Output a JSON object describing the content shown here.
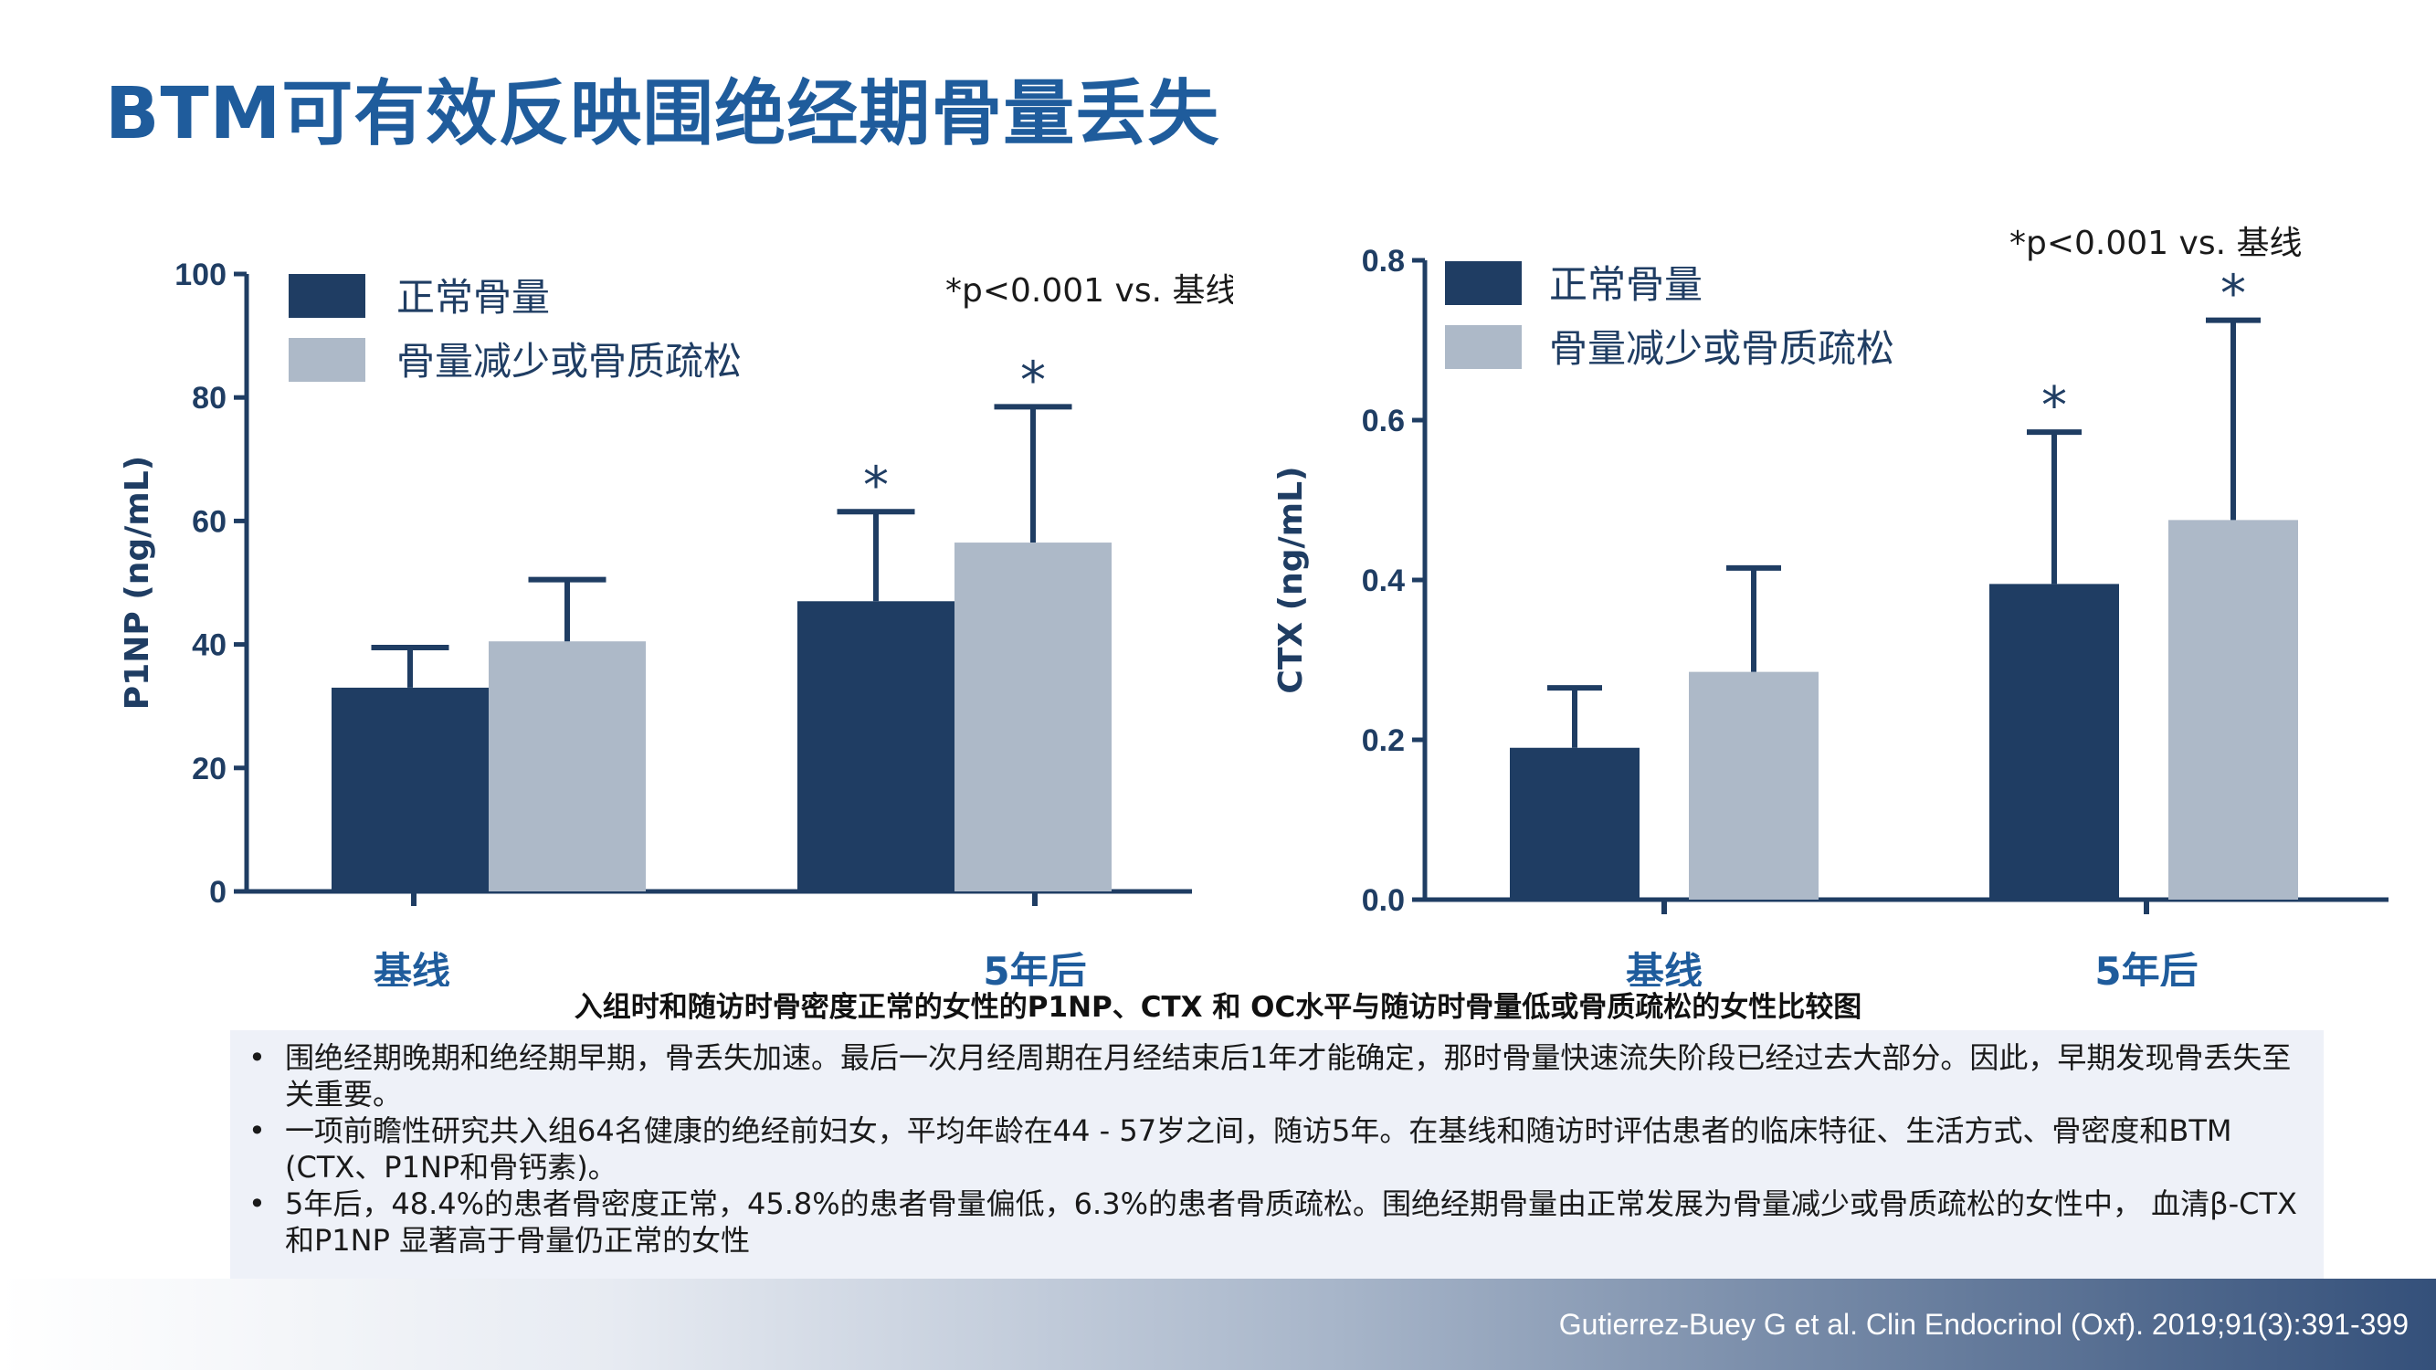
{
  "title": "BTM可有效反映围绝经期骨量丢失",
  "colors": {
    "normal": "#1f3d63",
    "low": "#adb9c8",
    "axis": "#1f3d63",
    "title": "#1f5c9c"
  },
  "chart_data": [
    {
      "type": "bar",
      "categories": [
        "基线",
        "5年后"
      ],
      "series": [
        {
          "name": "正常骨量",
          "values": [
            33,
            47
          ],
          "errors": [
            6.5,
            14.5
          ]
        },
        {
          "name": "骨量减少或骨质疏松",
          "values": [
            40.5,
            56.5
          ],
          "errors": [
            10,
            22
          ]
        }
      ],
      "ylabel": "P1NP (ng/mL)",
      "ylim": [
        0,
        100
      ],
      "yticks": [
        "0",
        "20",
        "40",
        "60",
        "80",
        "100"
      ],
      "annotation": "*p<0.001 vs. 基线",
      "significance": [
        [
          false,
          false
        ],
        [
          true,
          true
        ]
      ],
      "star": "*",
      "legend": "top-left",
      "grid": false
    },
    {
      "type": "bar",
      "categories": [
        "基线",
        "5年后"
      ],
      "series": [
        {
          "name": "正常骨量",
          "values": [
            0.19,
            0.395
          ],
          "errors": [
            0.075,
            0.19
          ]
        },
        {
          "name": "骨量减少或骨质疏松",
          "values": [
            0.285,
            0.475
          ],
          "errors": [
            0.13,
            0.25
          ]
        }
      ],
      "ylabel": "CTX (ng/mL)",
      "ylim": [
        0,
        0.8
      ],
      "yticks": [
        "0.0",
        "0.2",
        "0.4",
        "0.6",
        "0.8"
      ],
      "annotation": "*p<0.001 vs. 基线",
      "significance": [
        [
          false,
          false
        ],
        [
          true,
          true
        ]
      ],
      "star": "*",
      "legend": "top-left",
      "grid": false
    }
  ],
  "caption": "入组时和随访时骨密度正常的女性的P1NP、CTX 和 OC水平与随访时骨量低或骨质疏松的女性比较图",
  "bullets": [
    "围绝经期晚期和绝经期早期，骨丢失加速。最后一次月经周期在月经结束后1年才能确定，那时骨量快速流失阶段已经过去大部分。因此，早期发现骨丢失至关重要。",
    "一项前瞻性研究共入组64名健康的绝经前妇女，平均年龄在44 - 57岁之间，随访5年。在基线和随访时评估患者的临床特征、生活方式、骨密度和BTM (CTX、P1NP和骨钙素)。",
    "5年后，48.4%的患者骨密度正常，45.8%的患者骨量偏低，6.3%的患者骨质疏松。围绝经期骨量由正常发展为骨量减少或骨质疏松的女性中， 血清β-CTX 和P1NP 显著高于骨量仍正常的女性"
  ],
  "bullet_marker": "•",
  "reference": "Gutierrez-Buey G et al. Clin Endocrinol (Oxf). 2019;91(3):391-399"
}
